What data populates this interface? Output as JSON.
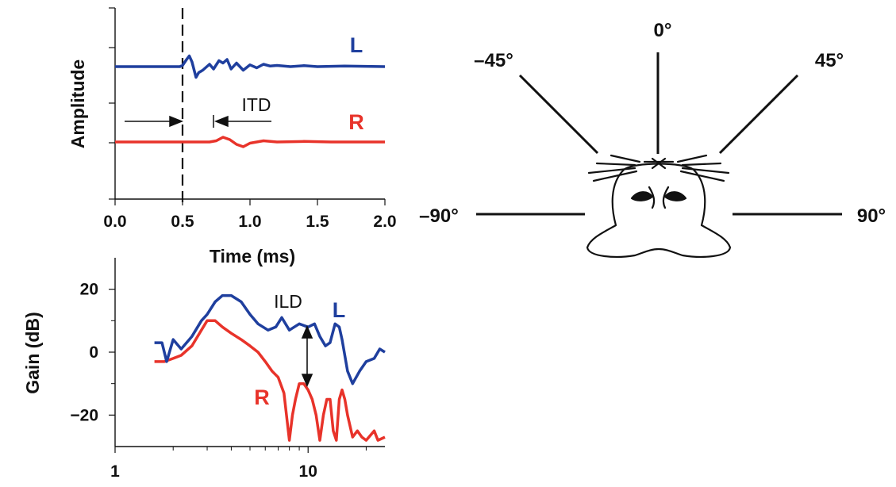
{
  "chart_data": [
    {
      "type": "line",
      "xlabel": "Time (ms)",
      "ylabel": "Amplitude",
      "xlim": [
        0,
        2
      ],
      "x_ticks": [
        "0.0",
        "0.5",
        "1.0",
        "1.5",
        "2.0"
      ],
      "marker_x": 0.5,
      "annotation": "ITD",
      "series": [
        {
          "name": "L",
          "color": "#1f3f9e",
          "x": [
            0,
            0.48,
            0.5,
            0.53,
            0.55,
            0.57,
            0.6,
            0.62,
            0.65,
            0.7,
            0.73,
            0.77,
            0.8,
            0.83,
            0.86,
            0.9,
            0.95,
            1.0,
            1.05,
            1.1,
            1.15,
            1.2,
            1.3,
            1.4,
            1.5,
            1.7,
            2.0
          ],
          "y": [
            0,
            0,
            0.1,
            0.6,
            0.9,
            0.4,
            -0.9,
            -0.5,
            -0.3,
            0.2,
            -0.2,
            0.5,
            0.3,
            0.6,
            -0.2,
            0.3,
            -0.3,
            0.15,
            -0.1,
            0.2,
            0.05,
            0.1,
            0.0,
            0.08,
            0.0,
            0.05,
            0
          ]
        },
        {
          "name": "R",
          "color": "#e8332a",
          "x": [
            0,
            0.7,
            0.75,
            0.8,
            0.85,
            0.9,
            0.95,
            1.0,
            1.1,
            1.2,
            1.4,
            1.6,
            2.0
          ],
          "y": [
            0,
            0,
            0.1,
            0.4,
            0.2,
            -0.2,
            -0.4,
            -0.1,
            0.1,
            0,
            0.05,
            0,
            0
          ]
        }
      ]
    },
    {
      "type": "line",
      "ylabel": "Gain (dB)",
      "xscale": "log",
      "xlim": [
        1,
        25
      ],
      "ylim": [
        -30,
        30
      ],
      "x_ticks": [
        "1",
        "10"
      ],
      "y_ticks": [
        "20",
        "0",
        "−20"
      ],
      "annotation": "ILD",
      "series": [
        {
          "name": "L",
          "color": "#1f3f9e",
          "x": [
            1.6,
            1.75,
            1.85,
            2.0,
            2.2,
            2.5,
            2.8,
            3.0,
            3.3,
            3.6,
            4.0,
            4.5,
            5.0,
            5.5,
            6.2,
            6.8,
            7.3,
            8.0,
            9.0,
            10.0,
            10.8,
            11.5,
            12.3,
            13.0,
            13.8,
            14.5,
            15.0,
            16.0,
            17.0,
            18.5,
            20.0,
            22.0,
            23.5,
            25.0
          ],
          "y": [
            3,
            3,
            -3,
            4,
            1,
            5,
            10,
            12,
            16,
            18,
            18,
            16,
            12,
            9,
            7,
            8,
            11,
            7,
            9,
            8,
            9,
            5,
            2,
            3,
            9,
            8,
            4,
            -6,
            -10,
            -6,
            -3,
            -2,
            1,
            0
          ]
        },
        {
          "name": "R",
          "color": "#e8332a",
          "x": [
            1.6,
            1.8,
            2.0,
            2.2,
            2.5,
            2.8,
            3.0,
            3.3,
            3.6,
            4.0,
            4.5,
            5.0,
            5.5,
            6.0,
            6.5,
            7.0,
            7.5,
            8.0,
            8.3,
            8.6,
            9.0,
            9.5,
            10.0,
            10.5,
            11.0,
            11.5,
            12.0,
            12.5,
            13.0,
            13.5,
            14.0,
            14.5,
            15.0,
            15.5,
            16.0,
            17.0,
            18.0,
            19.0,
            20.0,
            22.0,
            23.0,
            25.0
          ],
          "y": [
            -3,
            -3,
            -2,
            -1,
            2,
            7,
            10,
            10,
            8,
            6,
            4,
            2,
            0,
            -3,
            -6,
            -8,
            -13,
            -28,
            -20,
            -15,
            -10,
            -10,
            -12,
            -15,
            -20,
            -28,
            -20,
            -15,
            -15,
            -25,
            -28,
            -15,
            -12,
            -15,
            -20,
            -27,
            -25,
            -27,
            -28,
            -25,
            -28,
            -27
          ]
        }
      ]
    }
  ],
  "diagram": {
    "angles": [
      "0°",
      "–45°",
      "45°",
      "–90°",
      "90°"
    ]
  }
}
